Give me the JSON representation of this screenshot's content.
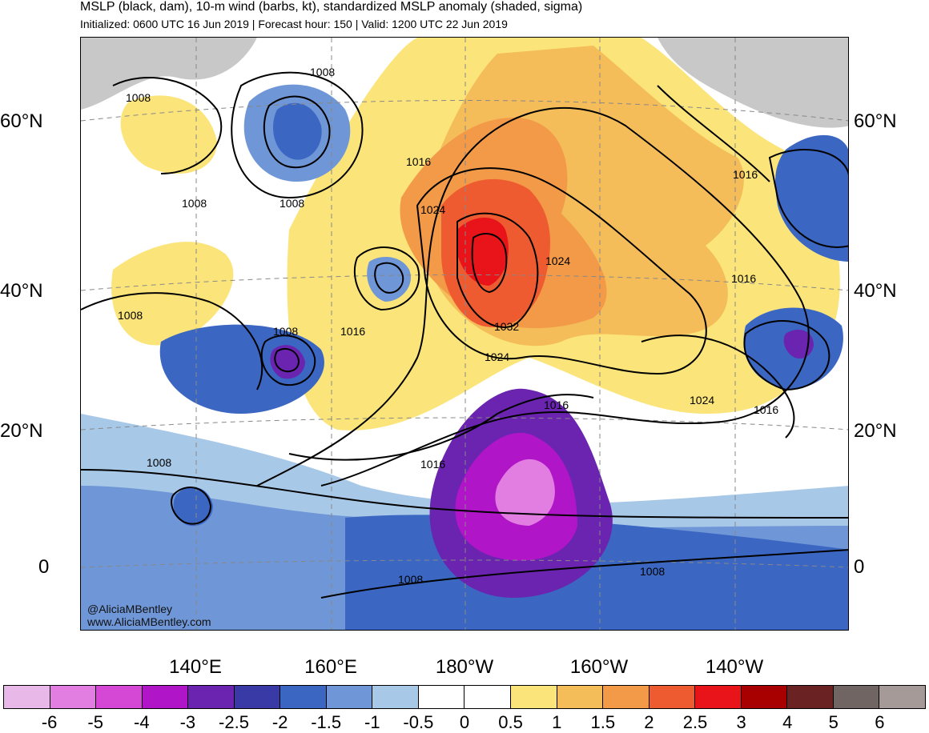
{
  "header": {
    "title": "MSLP (black, dam), 10-m wind (barbs, kt), standardized MSLP anomaly (shaded, sigma)",
    "subtitle": "Initialized: 0600 UTC 16 Jun 2019 | Forecast hour: 150 | Valid: 1200 UTC 22 Jun 2019"
  },
  "map": {
    "lat_labels": [
      "60°N",
      "40°N",
      "20°N",
      "0"
    ],
    "lon_labels": [
      "140°E",
      "160°E",
      "180°W",
      "160°W",
      "140°W"
    ],
    "contour_labels": [
      "1008",
      "1008",
      "1008",
      "1008",
      "1008",
      "1008",
      "1016",
      "1024",
      "1016",
      "1024",
      "1032",
      "1024",
      "1016",
      "1016",
      "1016",
      "1024",
      "1016",
      "1016",
      "1008",
      "1008",
      "1008"
    ],
    "credit_line1": "@AliciaMBentley",
    "credit_line2": "www.AliciaMBentley.com",
    "colors": {
      "land": "#c8c8c8",
      "contour": "#000000"
    }
  },
  "colorbar": {
    "labels": [
      "-6",
      "-5",
      "-4",
      "-3",
      "-2.5",
      "-2",
      "-1.5",
      "-1",
      "-0.5",
      "0",
      "0.5",
      "1",
      "1.5",
      "2",
      "2.5",
      "3",
      "4",
      "5",
      "6"
    ],
    "colors": [
      "#e8b9e8",
      "#e27de2",
      "#d548d5",
      "#b015c8",
      "#6a24b0",
      "#3a3aa6",
      "#3b67c2",
      "#6f96d6",
      "#a8c8e8",
      "#ffffff",
      "#ffffff",
      "#fbe57a",
      "#f5bd5a",
      "#f29a48",
      "#ef5b30",
      "#e8141a",
      "#a80000",
      "#6b2222",
      "#706563",
      "#a59a98"
    ]
  }
}
